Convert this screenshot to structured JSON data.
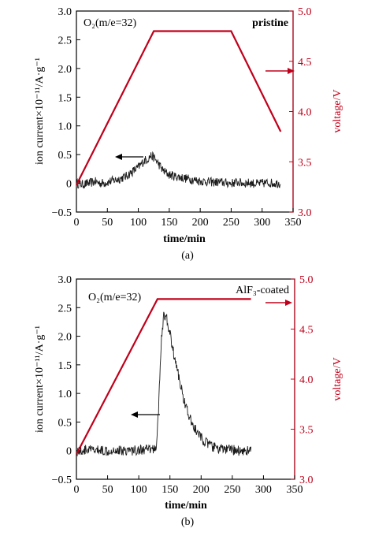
{
  "chart_data": [
    {
      "type": "line",
      "panel_caption": "(a)",
      "annotation_species": "O₂(m/e=32)",
      "annotation_sample": "pristine",
      "xlabel": "time/min",
      "ylabel": "ion current×10⁻¹¹/A·g⁻¹",
      "y2label": "voltage/V",
      "xlim": [
        0,
        350
      ],
      "ylim": [
        -0.5,
        3.0
      ],
      "y2lim": [
        3.0,
        5.0
      ],
      "x_ticks": [
        "0",
        "50",
        "100",
        "150",
        "200",
        "250",
        "300",
        "350"
      ],
      "y_ticks": [
        "−0.5",
        "0",
        "0.5",
        "1.0",
        "1.5",
        "2.0",
        "2.5",
        "3.0"
      ],
      "y2_ticks": [
        "3.0",
        "3.5",
        "4.0",
        "4.5",
        "5.0"
      ],
      "colors": {
        "current": "#1a1a1a",
        "voltage": "#c0001a"
      },
      "series": [
        {
          "axis": "left",
          "x": [
            0,
            10,
            20,
            30,
            40,
            50,
            60,
            70,
            80,
            90,
            100,
            110,
            115,
            120,
            125,
            130,
            135,
            140,
            150,
            160,
            170,
            180,
            190,
            200,
            210,
            220,
            230,
            240,
            250,
            260,
            270,
            280,
            290,
            300,
            310,
            320,
            330
          ],
          "values": [
            0.0,
            -0.02,
            0.0,
            0.03,
            0.0,
            0.02,
            0.05,
            0.08,
            0.12,
            0.2,
            0.28,
            0.4,
            0.42,
            0.48,
            0.45,
            0.38,
            0.3,
            0.22,
            0.15,
            0.12,
            0.1,
            0.08,
            0.06,
            0.04,
            0.03,
            0.02,
            0.02,
            0.01,
            0.0,
            0.02,
            0.0,
            0.01,
            -0.01,
            0.0,
            0.01,
            0.0,
            0.0
          ],
          "noise": 0.08
        },
        {
          "axis": "right",
          "x": [
            0,
            125,
            250,
            330
          ],
          "values": [
            3.27,
            4.8,
            4.8,
            3.8
          ]
        }
      ],
      "arrow_current": "left",
      "arrow_voltage": "right"
    },
    {
      "type": "line",
      "panel_caption": "(b)",
      "annotation_species": "O₂(m/e=32)",
      "annotation_sample": "AlF₃-coated",
      "xlabel": "time/min",
      "ylabel": "ion current×10⁻¹¹/A·g⁻¹",
      "y2label": "voltage/V",
      "xlim": [
        0,
        350
      ],
      "ylim": [
        -0.5,
        3.0
      ],
      "y2lim": [
        3.0,
        5.0
      ],
      "x_ticks": [
        "0",
        "50",
        "100",
        "150",
        "200",
        "250",
        "300",
        "350"
      ],
      "y_ticks": [
        "−0.5",
        "0",
        "0.5",
        "1.0",
        "1.5",
        "2.0",
        "2.5",
        "3.0"
      ],
      "y2_ticks": [
        "3.0",
        "3.5",
        "4.0",
        "4.5",
        "5.0"
      ],
      "colors": {
        "current": "#1a1a1a",
        "voltage": "#c0001a"
      },
      "series": [
        {
          "axis": "left",
          "x": [
            0,
            10,
            20,
            30,
            40,
            50,
            60,
            70,
            80,
            90,
            100,
            110,
            120,
            128,
            132,
            136,
            140,
            145,
            150,
            155,
            160,
            165,
            170,
            175,
            180,
            190,
            200,
            210,
            220,
            230,
            240,
            250,
            260,
            270,
            280
          ],
          "values": [
            0.0,
            0.0,
            0.02,
            0.0,
            0.01,
            0.0,
            0.02,
            0.0,
            0.01,
            0.0,
            0.02,
            0.01,
            0.02,
            0.05,
            0.8,
            1.9,
            2.35,
            2.3,
            2.05,
            1.75,
            1.5,
            1.25,
            1.0,
            0.8,
            0.6,
            0.38,
            0.22,
            0.12,
            0.06,
            0.03,
            0.02,
            0.01,
            0.0,
            0.0,
            0.0
          ],
          "noise": 0.09
        },
        {
          "axis": "right",
          "x": [
            0,
            130,
            280
          ],
          "values": [
            3.25,
            4.8,
            4.8
          ]
        }
      ],
      "arrow_current": "left",
      "arrow_voltage": "right"
    }
  ]
}
